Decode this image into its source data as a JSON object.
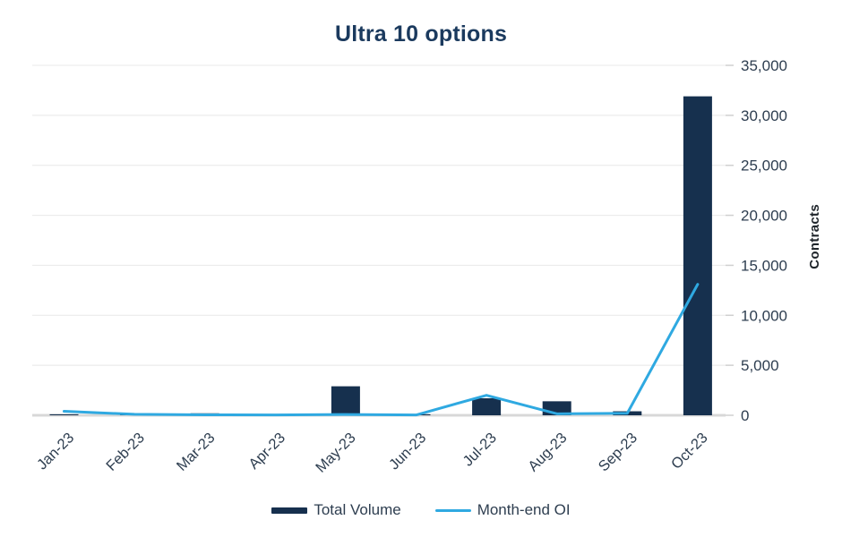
{
  "chart_data": {
    "type": "bar",
    "subtype": "bar-line-combo",
    "title": "Ultra 10 options",
    "ylabel": "Contracts",
    "categories": [
      "Jan-23",
      "Feb-23",
      "Mar-23",
      "Apr-23",
      "May-23",
      "Jun-23",
      "Jul-23",
      "Aug-23",
      "Sep-23",
      "Oct-23"
    ],
    "series": [
      {
        "name": "Total Volume",
        "type": "bar",
        "color": "#16304e",
        "values": [
          100,
          200,
          200,
          0,
          2900,
          100,
          1700,
          1400,
          400,
          31900
        ]
      },
      {
        "name": "Month-end OI",
        "type": "line",
        "color": "#2fa9e1",
        "values": [
          400,
          100,
          50,
          30,
          80,
          30,
          2000,
          150,
          200,
          13100
        ]
      }
    ],
    "ylim": [
      0,
      35000
    ],
    "y_ticks": [
      "0",
      "5,000",
      "10,000",
      "15,000",
      "20,000",
      "25,000",
      "30,000",
      "35,000"
    ],
    "y_axis_side": "right",
    "grid": "horizontal",
    "legend_position": "bottom",
    "x_label_rotation": -45
  },
  "colors": {
    "title": "#1b3a5e",
    "axis_text": "#2e3e50",
    "gridline": "#e8e8e8",
    "baseline": "#d8d8d8",
    "background": "#ffffff"
  }
}
